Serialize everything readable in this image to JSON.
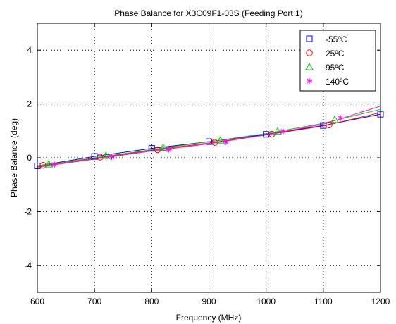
{
  "chart_data": {
    "type": "line",
    "title": "Phase Balance for X3C09F1-03S (Feeding Port 1)",
    "xlabel": "Frequency (MHz)",
    "ylabel": "Phase Balance (deg)",
    "xlim": [
      600,
      1200
    ],
    "ylim": [
      -5,
      5
    ],
    "xticks": [
      600,
      700,
      800,
      900,
      1000,
      1100,
      1200
    ],
    "yticks": [
      -4,
      -2,
      0,
      2,
      4
    ],
    "grid": true,
    "legend_position": "top-right",
    "series": [
      {
        "name": "-55ºC",
        "color": "#0000ff",
        "marker": "square",
        "line": {
          "x": [
            600,
            700,
            800,
            900,
            1000,
            1100,
            1200
          ],
          "y": [
            -0.3,
            0.05,
            0.35,
            0.6,
            0.87,
            1.2,
            1.62
          ]
        },
        "markers": {
          "x": [
            600,
            700,
            800,
            900,
            1000,
            1100,
            1200
          ],
          "y": [
            -0.3,
            0.05,
            0.35,
            0.6,
            0.87,
            1.2,
            1.62
          ]
        }
      },
      {
        "name": "25ºC",
        "color": "#ff0000",
        "marker": "circle",
        "line": {
          "x": [
            600,
            700,
            800,
            900,
            1000,
            1100,
            1200
          ],
          "y": [
            -0.32,
            -0.02,
            0.28,
            0.55,
            0.85,
            1.18,
            1.68
          ]
        },
        "markers": {
          "x": [
            610,
            710,
            810,
            910,
            1010,
            1110
          ],
          "y": [
            -0.28,
            0.02,
            0.3,
            0.57,
            0.88,
            1.22
          ]
        }
      },
      {
        "name": "95ºC",
        "color": "#00cc00",
        "marker": "triangle",
        "line": {
          "x": [
            600,
            700,
            800,
            900,
            1000,
            1100,
            1200
          ],
          "y": [
            -0.3,
            0.0,
            0.3,
            0.6,
            0.9,
            1.28,
            1.8
          ]
        },
        "markers": {
          "x": [
            620,
            720,
            820,
            920,
            1020,
            1120
          ],
          "y": [
            -0.24,
            0.08,
            0.38,
            0.65,
            0.98,
            1.42
          ]
        }
      },
      {
        "name": "140ºC",
        "color": "#ff00ff",
        "marker": "asterisk",
        "line": {
          "x": [
            600,
            700,
            800,
            900,
            1000,
            1100,
            1200
          ],
          "y": [
            -0.35,
            -0.05,
            0.25,
            0.52,
            0.85,
            1.25,
            1.92
          ]
        },
        "markers": {
          "x": [
            630,
            730,
            830,
            930,
            1030,
            1130
          ],
          "y": [
            -0.25,
            0.03,
            0.3,
            0.58,
            0.98,
            1.48
          ]
        }
      }
    ]
  }
}
